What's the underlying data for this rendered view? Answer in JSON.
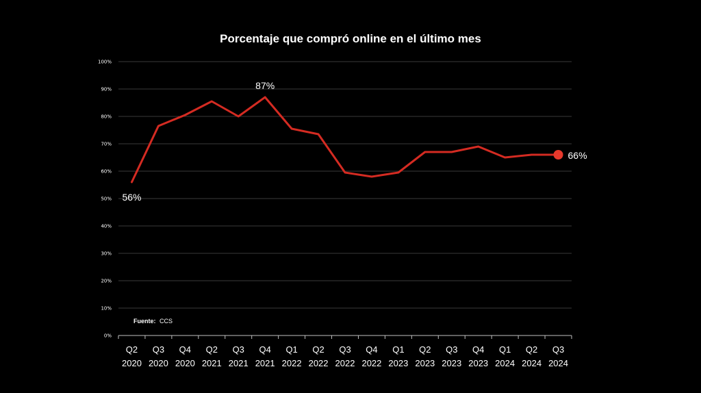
{
  "chart_data": {
    "type": "line",
    "title": "Porcentaje que compró online en el último mes",
    "categories": [
      [
        "Q2",
        "2020"
      ],
      [
        "Q3",
        "2020"
      ],
      [
        "Q4",
        "2020"
      ],
      [
        "Q2",
        "2021"
      ],
      [
        "Q3",
        "2021"
      ],
      [
        "Q4",
        "2021"
      ],
      [
        "Q1",
        "2022"
      ],
      [
        "Q2",
        "2022"
      ],
      [
        "Q3",
        "2022"
      ],
      [
        "Q4",
        "2022"
      ],
      [
        "Q1",
        "2023"
      ],
      [
        "Q2",
        "2023"
      ],
      [
        "Q3",
        "2023"
      ],
      [
        "Q4",
        "2023"
      ],
      [
        "Q1",
        "2024"
      ],
      [
        "Q2",
        "2024"
      ],
      [
        "Q3",
        "2024"
      ]
    ],
    "series": [
      {
        "values": [
          56,
          76.5,
          80.5,
          85.5,
          80,
          87,
          75.5,
          73.5,
          59.5,
          58,
          59.5,
          67,
          67,
          69,
          65,
          66,
          66
        ],
        "color": "#d42b22"
      }
    ],
    "ylim": [
      0,
      100
    ],
    "yticks": [
      "0%",
      "10%",
      "20%",
      "30%",
      "40%",
      "50%",
      "60%",
      "70%",
      "80%",
      "90%",
      "100%"
    ],
    "grid": true,
    "data_labels": [
      {
        "index": 0,
        "text": "56%"
      },
      {
        "index": 5,
        "text": "87%"
      },
      {
        "index": 16,
        "text": "66%"
      }
    ],
    "end_marker_color": "#e8392c",
    "source_label": "Fuente:",
    "source_value": "CCS"
  }
}
